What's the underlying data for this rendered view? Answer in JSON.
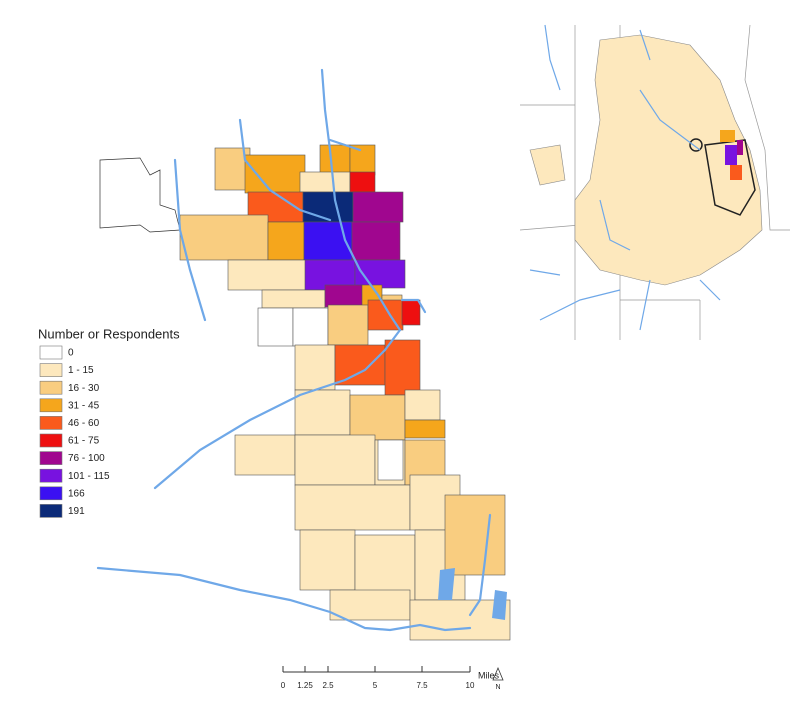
{
  "legend": {
    "title": "Number or Respondents",
    "items": [
      {
        "label": "0",
        "color": "#ffffff"
      },
      {
        "label": "1 - 15",
        "color": "#fde8bd"
      },
      {
        "label": "16 - 30",
        "color": "#f9cd80"
      },
      {
        "label": "31 - 45",
        "color": "#f5a61c"
      },
      {
        "label": "46 - 60",
        "color": "#fa5a1c"
      },
      {
        "label": "61 - 75",
        "color": "#ee0f10"
      },
      {
        "label": "76 - 100",
        "color": "#a0068f"
      },
      {
        "label": "101 - 115",
        "color": "#7812e0"
      },
      {
        "label": "166",
        "color": "#3b10f2"
      },
      {
        "label": "191",
        "color": "#0b2a78"
      }
    ]
  },
  "scale_bar": {
    "ticks": [
      "0",
      "1.25",
      "2.5",
      "5",
      "7.5",
      "10"
    ],
    "unit": "Miles"
  },
  "north_arrow": "N"
}
